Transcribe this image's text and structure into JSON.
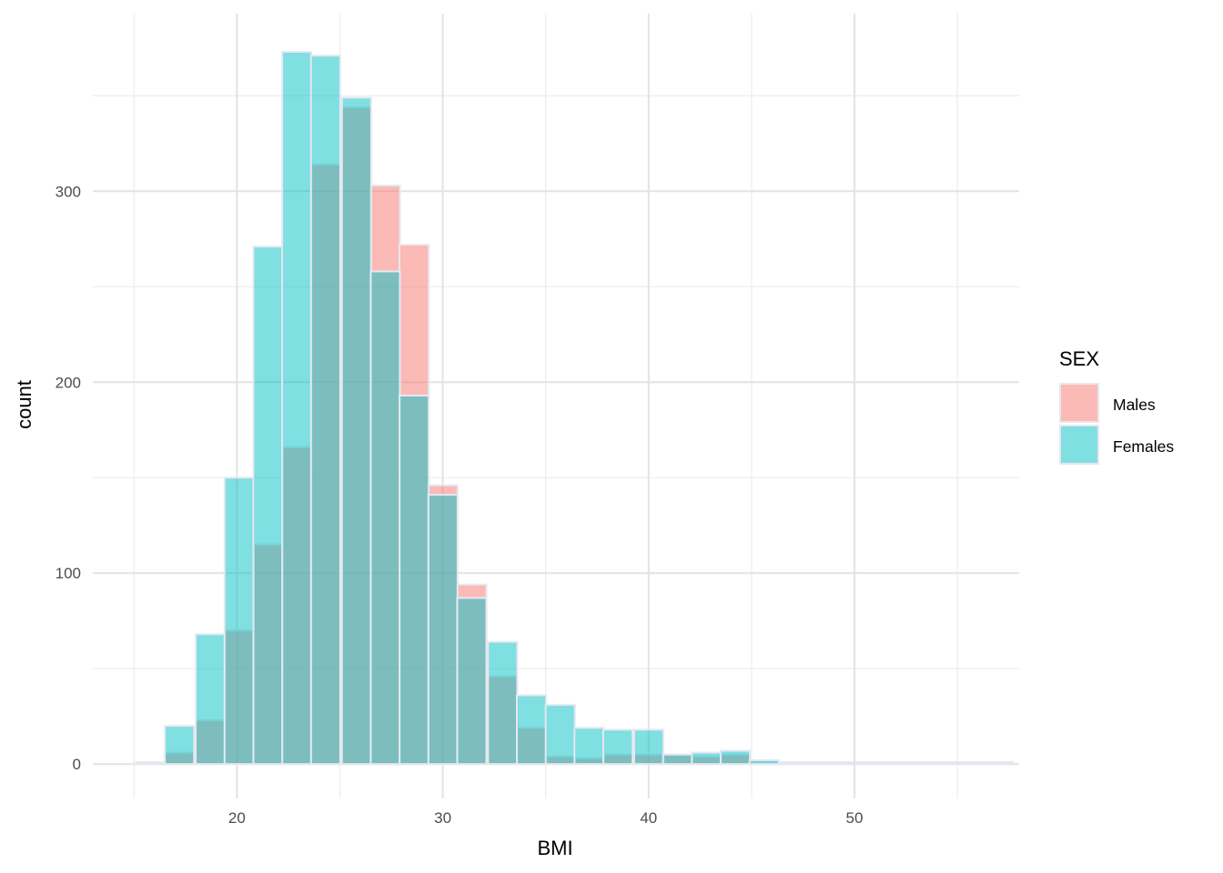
{
  "chart_data": {
    "type": "bar",
    "subtype": "overlapping histogram",
    "title": "",
    "xlabel": "BMI",
    "ylabel": "count",
    "xlim": [
      13,
      58
    ],
    "ylim": [
      -18,
      393
    ],
    "x_ticks": [
      20,
      30,
      40,
      50
    ],
    "y_ticks": [
      0,
      100,
      200,
      300
    ],
    "grid": true,
    "legend": {
      "title": "SEX",
      "position": "right"
    },
    "bins": {
      "left_edges": [
        15.1,
        16.5,
        18.0,
        19.4,
        20.8,
        22.2,
        23.6,
        25.1,
        26.5,
        27.9,
        29.3,
        30.7,
        32.2,
        33.6,
        35.0,
        36.4,
        37.8,
        39.3,
        40.7,
        42.1,
        43.5,
        44.9,
        46.4,
        47.8,
        49.2,
        50.6,
        52.0,
        53.5,
        54.9,
        56.3
      ],
      "width": 1.42
    },
    "series": [
      {
        "name": "Males",
        "color": "#F8766D",
        "values": [
          0,
          6,
          23,
          70,
          115,
          166,
          314,
          344,
          303,
          272,
          146,
          94,
          46,
          19,
          4,
          3,
          5,
          5,
          5,
          4,
          5,
          1,
          0,
          0,
          0,
          0,
          0,
          0,
          0,
          0
        ]
      },
      {
        "name": "Females",
        "color": "#00BFC4",
        "values": [
          1,
          20,
          68,
          150,
          271,
          373,
          371,
          349,
          258,
          193,
          141,
          87,
          64,
          36,
          31,
          19,
          18,
          18,
          5,
          6,
          7,
          2,
          1,
          1,
          1,
          1,
          1,
          1,
          1,
          1
        ]
      }
    ]
  }
}
